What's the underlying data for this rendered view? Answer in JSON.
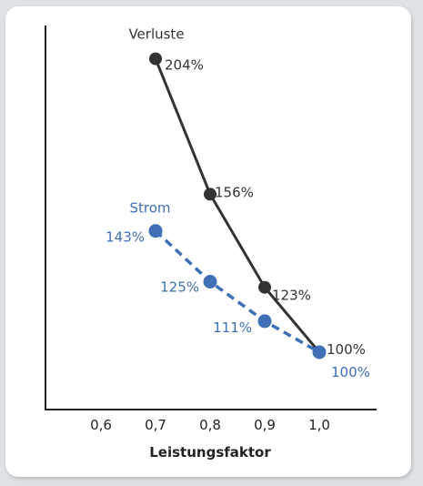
{
  "chart_data": {
    "type": "line",
    "xlabel": "Leistungsfaktor",
    "ylabel": "",
    "xlim": [
      0.5,
      1.1
    ],
    "ylim": [
      60,
      225
    ],
    "x_ticks": [
      0.6,
      0.7,
      0.8,
      0.9,
      1.0
    ],
    "x_tick_labels": [
      "0,6",
      "0,7",
      "0,8",
      "0,9",
      "1,0"
    ],
    "grid": false,
    "series": [
      {
        "name": "Verluste",
        "color": "#333333",
        "line_style": "solid",
        "x": [
          0.7,
          0.8,
          0.9,
          1.0
        ],
        "values": [
          204,
          156,
          123,
          100
        ],
        "labels": [
          "204%",
          "156%",
          "123%",
          "100%"
        ]
      },
      {
        "name": "Strom",
        "color": "#3f6fb5",
        "line_style": "dashed",
        "x": [
          0.7,
          0.8,
          0.9,
          1.0
        ],
        "values": [
          143,
          125,
          111,
          100
        ],
        "labels": [
          "143%",
          "125%",
          "111%",
          "100%"
        ]
      }
    ]
  }
}
